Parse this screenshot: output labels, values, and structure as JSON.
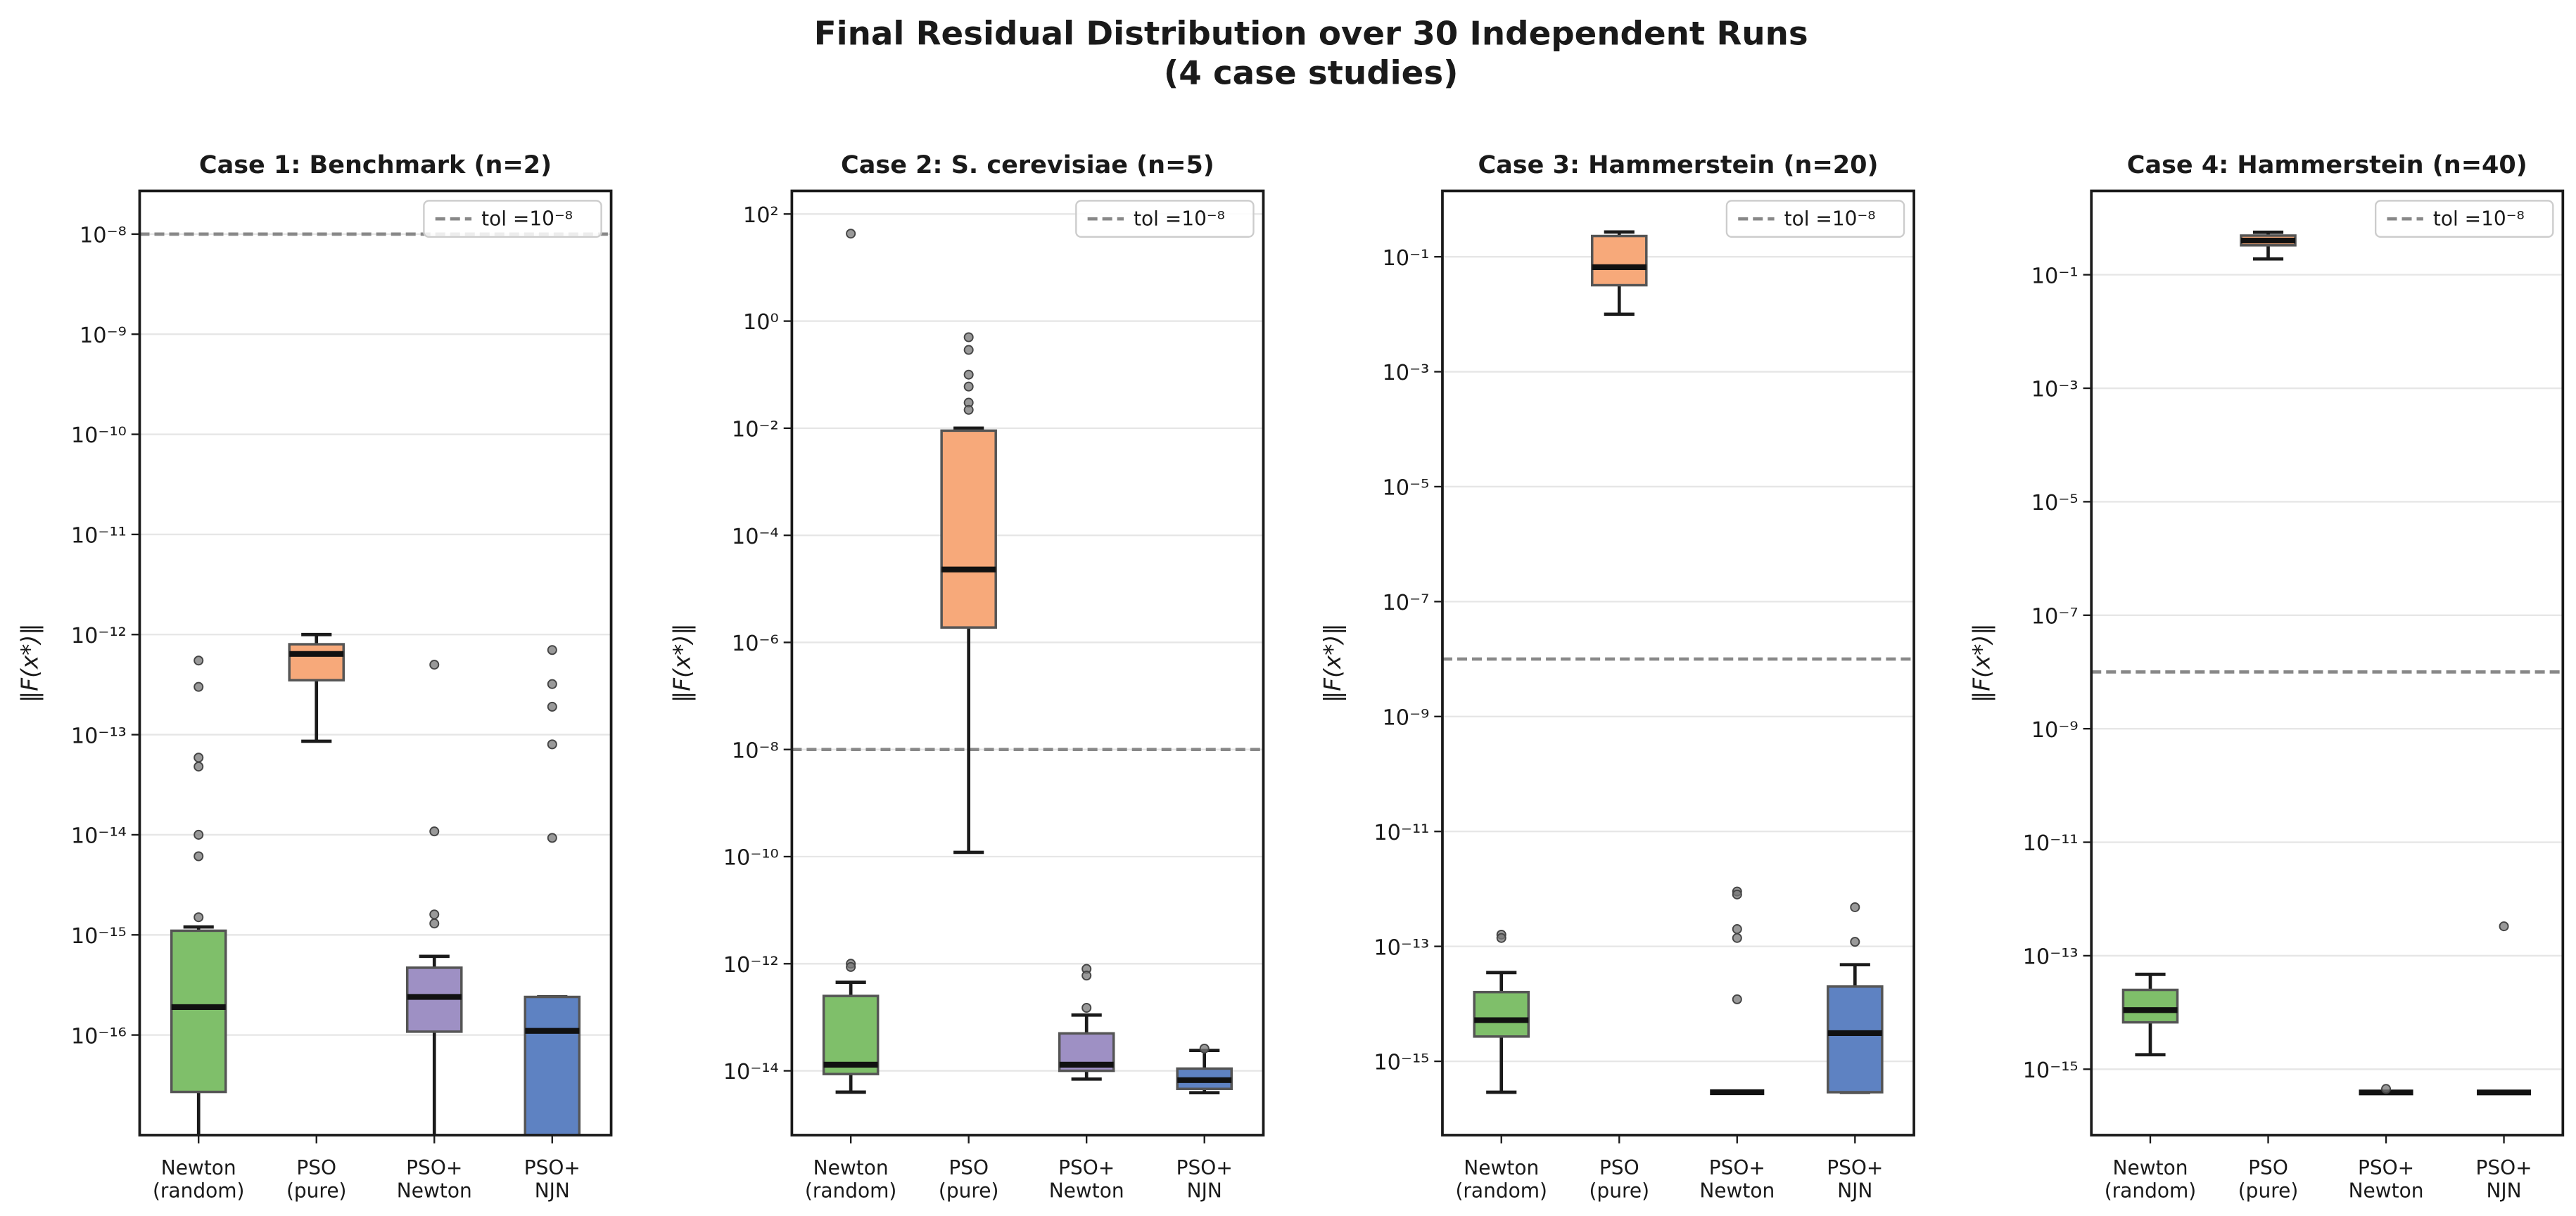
{
  "title": "Final Residual Distribution over 30 Independent Runs",
  "subtitle": "(4 case studies)",
  "chart_data": [
    {
      "type": "box",
      "title": "Case 1: Benchmark (n=2)",
      "ylabel": "‖F(x*)‖",
      "log": true,
      "grid": true,
      "legend": "upper right",
      "categories": [
        [
          "Newton",
          "(random)"
        ],
        [
          "PSO",
          "(pure)"
        ],
        [
          "PSO+",
          "Newton"
        ],
        [
          "PSO+",
          "NJN"
        ]
      ],
      "colors": [
        "#7fbf6a",
        "#f7a97a",
        "#9e90c4",
        "#5e82c2"
      ],
      "boxes": [
        {
          "whislo": 5e-18,
          "q1": 2.7e-17,
          "med": 1.9e-16,
          "q3": 1.1e-15,
          "whishi": 1.2e-15,
          "fliers": [
            5.5e-13,
            3e-13,
            5.9e-14,
            4.8e-14,
            1e-14,
            6.1e-15,
            1.5e-15
          ]
        },
        {
          "whislo": 8.6e-14,
          "q1": 3.5e-13,
          "med": 6.4e-13,
          "q3": 8e-13,
          "whishi": 1e-12,
          "fliers": []
        },
        {
          "whislo": 5e-18,
          "q1": 1.08e-16,
          "med": 2.4e-16,
          "q3": 4.7e-16,
          "whishi": 6.1e-16,
          "fliers": [
            5e-13,
            1.08e-14,
            1.6e-15,
            1.3e-15
          ]
        },
        {
          "whislo": 5e-18,
          "q1": 5e-18,
          "med": 1.1e-16,
          "q3": 2.4e-16,
          "whishi": 2.4e-16,
          "fliers": [
            7e-13,
            3.2e-13,
            1.9e-13,
            8e-14,
            9.3e-15
          ]
        }
      ],
      "reference_line": {
        "value": 1e-08,
        "label": "tol =10⁻⁸",
        "color": "#888888"
      },
      "ylim": [
        1e-17,
        2.7e-08
      ],
      "yticks": [
        {
          "value": 1e-08,
          "label": "10⁻⁸"
        },
        {
          "value": 1e-09,
          "label": "10⁻⁹"
        },
        {
          "value": 1e-10,
          "label": "10⁻¹⁰"
        },
        {
          "value": 1e-11,
          "label": "10⁻¹¹"
        },
        {
          "value": 1e-12,
          "label": "10⁻¹²"
        },
        {
          "value": 1e-13,
          "label": "10⁻¹³"
        },
        {
          "value": 1e-14,
          "label": "10⁻¹⁴"
        },
        {
          "value": 1e-15,
          "label": "10⁻¹⁵"
        },
        {
          "value": 1e-16,
          "label": "10⁻¹⁶"
        }
      ]
    },
    {
      "type": "box",
      "title": "Case 2: S. cerevisiae (n=5)",
      "ylabel": "‖F(x*)‖",
      "log": true,
      "grid": true,
      "legend": "upper right",
      "categories": [
        [
          "Newton",
          "(random)"
        ],
        [
          "PSO",
          "(pure)"
        ],
        [
          "PSO+",
          "Newton"
        ],
        [
          "PSO+",
          "NJN"
        ]
      ],
      "colors": [
        "#7fbf6a",
        "#f7a97a",
        "#9e90c4",
        "#5e82c2"
      ],
      "boxes": [
        {
          "whislo": 4e-15,
          "q1": 8.7e-15,
          "med": 1.3e-14,
          "q3": 2.5e-13,
          "whishi": 4.5e-13,
          "fliers": [
            43,
            1e-12,
            8.7e-13
          ]
        },
        {
          "whislo": 1.2e-10,
          "q1": 1.9e-06,
          "med": 2.3e-05,
          "q3": 0.009,
          "whishi": 0.01,
          "fliers": [
            0.5,
            0.29,
            0.1,
            0.06,
            0.03,
            0.022
          ]
        },
        {
          "whislo": 7e-15,
          "q1": 1e-14,
          "med": 1.3e-14,
          "q3": 5e-14,
          "whishi": 1.1e-13,
          "fliers": [
            8e-13,
            6e-13,
            1.5e-13
          ]
        },
        {
          "whislo": 3.9e-15,
          "q1": 4.6e-15,
          "med": 6.7e-15,
          "q3": 1.1e-14,
          "whishi": 2.4e-14,
          "fliers": [
            2.6e-14
          ]
        }
      ],
      "reference_line": {
        "value": 1e-08,
        "label": "tol =10⁻⁸",
        "color": "#888888"
      },
      "ylim": [
        6.3e-16,
        270
      ],
      "yticks": [
        {
          "value": 100,
          "label": "10²"
        },
        {
          "value": 1,
          "label": "10⁰"
        },
        {
          "value": 0.01,
          "label": "10⁻²"
        },
        {
          "value": 0.0001,
          "label": "10⁻⁴"
        },
        {
          "value": 1e-06,
          "label": "10⁻⁶"
        },
        {
          "value": 1e-08,
          "label": "10⁻⁸"
        },
        {
          "value": 1e-10,
          "label": "10⁻¹⁰"
        },
        {
          "value": 1e-12,
          "label": "10⁻¹²"
        },
        {
          "value": 1e-14,
          "label": "10⁻¹⁴"
        }
      ]
    },
    {
      "type": "box",
      "title": "Case 3: Hammerstein (n=20)",
      "ylabel": "‖F(x*)‖",
      "log": true,
      "grid": true,
      "legend": "upper right",
      "categories": [
        [
          "Newton",
          "(random)"
        ],
        [
          "PSO",
          "(pure)"
        ],
        [
          "PSO+",
          "Newton"
        ],
        [
          "PSO+",
          "NJN"
        ]
      ],
      "colors": [
        "#7fbf6a",
        "#f7a97a",
        "#9e90c4",
        "#5e82c2"
      ],
      "boxes": [
        {
          "whislo": 2.9e-16,
          "q1": 2.7e-15,
          "med": 5.2e-15,
          "q3": 1.6e-14,
          "whishi": 3.5e-14,
          "fliers": [
            1.6e-13,
            1.4e-13
          ]
        },
        {
          "whislo": 0.01,
          "q1": 0.032,
          "med": 0.066,
          "q3": 0.23,
          "whishi": 0.27,
          "fliers": []
        },
        {
          "whislo": 2.9e-16,
          "q1": 2.9e-16,
          "med": 2.9e-16,
          "q3": 2.9e-16,
          "whishi": 2.9e-16,
          "fliers": [
            9e-13,
            8e-13,
            2e-13,
            1.4e-13,
            1.2e-14
          ]
        },
        {
          "whislo": 2.9e-16,
          "q1": 2.9e-16,
          "med": 3.1e-15,
          "q3": 2e-14,
          "whishi": 4.8e-14,
          "fliers": [
            4.8e-13,
            1.2e-13
          ]
        }
      ],
      "reference_line": {
        "value": 1e-08,
        "label": "tol =10⁻⁸",
        "color": "#888888"
      },
      "ylim": [
        5.2e-17,
        1.4
      ],
      "yticks": [
        {
          "value": 0.1,
          "label": "10⁻¹"
        },
        {
          "value": 0.001,
          "label": "10⁻³"
        },
        {
          "value": 1e-05,
          "label": "10⁻⁵"
        },
        {
          "value": 1e-07,
          "label": "10⁻⁷"
        },
        {
          "value": 1e-09,
          "label": "10⁻⁹"
        },
        {
          "value": 1e-11,
          "label": "10⁻¹¹"
        },
        {
          "value": 1e-13,
          "label": "10⁻¹³"
        },
        {
          "value": 1e-15,
          "label": "10⁻¹⁵"
        }
      ]
    },
    {
      "type": "box",
      "title": "Case 4: Hammerstein (n=40)",
      "ylabel": "‖F(x*)‖",
      "log": true,
      "grid": true,
      "legend": "upper right",
      "categories": [
        [
          "Newton",
          "(random)"
        ],
        [
          "PSO",
          "(pure)"
        ],
        [
          "PSO+",
          "Newton"
        ],
        [
          "PSO+",
          "NJN"
        ]
      ],
      "colors": [
        "#7fbf6a",
        "#f7a97a",
        "#9e90c4",
        "#5e82c2"
      ],
      "boxes": [
        {
          "whislo": 1.8e-15,
          "q1": 6.7e-15,
          "med": 1.1e-14,
          "q3": 2.5e-14,
          "whishi": 4.7e-14,
          "fliers": []
        },
        {
          "whislo": 0.19,
          "q1": 0.33,
          "med": 0.4,
          "q3": 0.49,
          "whishi": 0.56,
          "fliers": []
        },
        {
          "whislo": 3.9e-16,
          "q1": 3.9e-16,
          "med": 3.9e-16,
          "q3": 3.9e-16,
          "whishi": 3.9e-16,
          "fliers": [
            4.5e-16
          ]
        },
        {
          "whislo": 3.9e-16,
          "q1": 3.9e-16,
          "med": 3.9e-16,
          "q3": 3.9e-16,
          "whishi": 3.9e-16,
          "fliers": [
            3.3e-13
          ]
        }
      ],
      "reference_line": {
        "value": 1e-08,
        "label": "tol =10⁻⁸",
        "color": "#888888"
      },
      "ylim": [
        6.9e-17,
        3
      ],
      "yticks": [
        {
          "value": 0.1,
          "label": "10⁻¹"
        },
        {
          "value": 0.001,
          "label": "10⁻³"
        },
        {
          "value": 1e-05,
          "label": "10⁻⁵"
        },
        {
          "value": 1e-07,
          "label": "10⁻⁷"
        },
        {
          "value": 1e-09,
          "label": "10⁻⁹"
        },
        {
          "value": 1e-11,
          "label": "10⁻¹¹"
        },
        {
          "value": 1e-13,
          "label": "10⁻¹³"
        },
        {
          "value": 1e-15,
          "label": "10⁻¹⁵"
        }
      ]
    }
  ]
}
